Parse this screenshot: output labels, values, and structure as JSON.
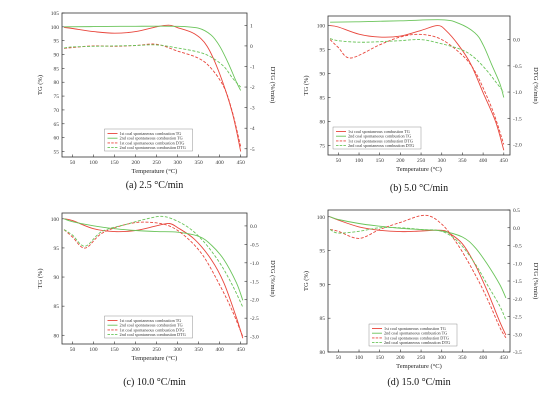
{
  "chart_data": [
    {
      "type": "line",
      "caption": "(a) 2.5 °C/min",
      "xlabel": "Temperature (°C)",
      "ylabel": "TG (%)",
      "y2label": "DTG (%/min)",
      "xlim": [
        25,
        465
      ],
      "ylim": [
        53,
        105
      ],
      "y2lim": [
        -5.4,
        1.6
      ],
      "xticks": [
        "50",
        "100",
        "150",
        "200",
        "250",
        "300",
        "350",
        "400",
        "450"
      ],
      "yticks": [
        "55",
        "60",
        "65",
        "70",
        "75",
        "80",
        "85",
        "90",
        "95",
        "100",
        "105"
      ],
      "y2ticks": [
        "-5",
        "-4",
        "-3",
        "-2",
        "-1",
        "0",
        "1"
      ],
      "legend_position": "lower-center",
      "series": [
        {
          "name": "1st coal spontaneous combustion TG",
          "axis": "left",
          "color": "#e8463c",
          "dash": "solid",
          "x": [
            30,
            50,
            100,
            150,
            200,
            250,
            280,
            300,
            340,
            370,
            400,
            430,
            450
          ],
          "y": [
            99.8,
            99.4,
            98.3,
            97.7,
            98.3,
            100.0,
            100.6,
            99.7,
            97.5,
            93.0,
            83.0,
            69.0,
            55.0
          ]
        },
        {
          "name": "2nd coal spontaneous combustion TG",
          "axis": "left",
          "color": "#6ac45a",
          "dash": "solid",
          "x": [
            30,
            100,
            200,
            300,
            350,
            380,
            400,
            420,
            440,
            450
          ],
          "y": [
            100.0,
            100.1,
            100.2,
            100.2,
            99.5,
            97.0,
            93.0,
            87.0,
            80.0,
            77.0
          ]
        },
        {
          "name": "1st coal spontaneous combustion DTG",
          "axis": "right",
          "color": "#e8463c",
          "dash": "dash",
          "x": [
            30,
            50,
            100,
            150,
            200,
            250,
            300,
            350,
            380,
            410,
            430,
            450
          ],
          "y": [
            -0.12,
            -0.08,
            0.0,
            -0.02,
            0.02,
            0.08,
            -0.25,
            -0.6,
            -1.1,
            -2.0,
            -3.2,
            -4.9
          ]
        },
        {
          "name": "2nd coal spontaneous combustion DTG",
          "axis": "right",
          "color": "#6ac45a",
          "dash": "dash",
          "x": [
            30,
            50,
            100,
            150,
            200,
            250,
            300,
            350,
            380,
            410,
            430,
            450
          ],
          "y": [
            -0.1,
            -0.05,
            -0.02,
            0.0,
            0.02,
            0.05,
            -0.1,
            -0.3,
            -0.55,
            -1.0,
            -1.55,
            -2.0
          ]
        }
      ]
    },
    {
      "type": "line",
      "caption": "(b) 5.0 °C/min",
      "xlabel": "Temperature (°C)",
      "ylabel": "TG (%)",
      "y2label": "DTG (%/min)",
      "xlim": [
        25,
        465
      ],
      "ylim": [
        73,
        102
      ],
      "y2lim": [
        -2.2,
        0.45
      ],
      "xticks": [
        "50",
        "100",
        "150",
        "200",
        "250",
        "300",
        "350",
        "400",
        "450"
      ],
      "yticks": [
        "75",
        "80",
        "85",
        "90",
        "95",
        "100"
      ],
      "y2ticks": [
        "-2.0",
        "-1.5",
        "-1.0",
        "-0.5",
        "0.0"
      ],
      "legend_position": "lower-left",
      "series": [
        {
          "name": "1st coal spontaneous combustion TG",
          "axis": "left",
          "color": "#e8463c",
          "dash": "solid",
          "x": [
            30,
            50,
            100,
            150,
            200,
            250,
            290,
            310,
            340,
            370,
            400,
            430,
            450
          ],
          "y": [
            100.0,
            99.7,
            98.2,
            97.6,
            97.8,
            99.0,
            100.0,
            99.0,
            96.0,
            92.0,
            86.0,
            80.0,
            74.0
          ]
        },
        {
          "name": "2nd coal spontaneous combustion TG",
          "axis": "left",
          "color": "#6ac45a",
          "dash": "solid",
          "x": [
            30,
            100,
            200,
            300,
            340,
            380,
            400,
            420,
            440,
            450
          ],
          "y": [
            100.7,
            100.8,
            101.0,
            101.2,
            100.5,
            98.5,
            96.0,
            92.0,
            88.0,
            85.0
          ]
        },
        {
          "name": "1st coal spontaneous combustion DTG",
          "axis": "right",
          "color": "#e8463c",
          "dash": "dash",
          "x": [
            30,
            50,
            80,
            150,
            200,
            250,
            300,
            350,
            380,
            410,
            430,
            450
          ],
          "y": [
            0.0,
            -0.15,
            -0.35,
            -0.1,
            0.05,
            0.1,
            0.0,
            -0.3,
            -0.6,
            -1.1,
            -1.5,
            -2.0
          ]
        },
        {
          "name": "2nd coal spontaneous combustion DTG",
          "axis": "right",
          "color": "#6ac45a",
          "dash": "dash",
          "x": [
            30,
            50,
            100,
            150,
            200,
            250,
            300,
            350,
            380,
            410,
            430,
            450
          ],
          "y": [
            0.02,
            -0.02,
            -0.05,
            -0.04,
            -0.02,
            0.0,
            -0.08,
            -0.2,
            -0.35,
            -0.6,
            -0.8,
            -1.0
          ]
        }
      ]
    },
    {
      "type": "line",
      "caption": "(c) 10.0 °C/min",
      "xlabel": "Temperature (°C)",
      "ylabel": "TG (%)",
      "y2label": "DTG (%/min)",
      "xlim": [
        25,
        465
      ],
      "ylim": [
        78.5,
        101
      ],
      "y2lim": [
        -3.2,
        0.35
      ],
      "xticks": [
        "50",
        "100",
        "150",
        "200",
        "250",
        "300",
        "350",
        "400",
        "450"
      ],
      "yticks": [
        "80",
        "85",
        "90",
        "95",
        "100"
      ],
      "y2ticks": [
        "-3.0",
        "-2.5",
        "-2.0",
        "-1.5",
        "-1.0",
        "-0.5",
        "0.0"
      ],
      "legend_position": "lower-center",
      "series": [
        {
          "name": "1st coal spontaneous combustion TG",
          "axis": "left",
          "color": "#e8463c",
          "dash": "solid",
          "x": [
            30,
            50,
            100,
            150,
            200,
            250,
            280,
            300,
            340,
            380,
            410,
            440,
            455
          ],
          "y": [
            100.0,
            99.7,
            98.3,
            97.8,
            98.0,
            98.8,
            99.2,
            98.5,
            96.5,
            93.0,
            89.0,
            83.0,
            79.5
          ]
        },
        {
          "name": "2nd coal spontaneous combustion TG",
          "axis": "left",
          "color": "#6ac45a",
          "dash": "solid",
          "x": [
            30,
            50,
            100,
            150,
            200,
            250,
            300,
            350,
            380,
            410,
            440,
            455
          ],
          "y": [
            100.0,
            99.5,
            98.8,
            98.3,
            98.0,
            97.8,
            97.7,
            97.0,
            95.5,
            93.0,
            89.0,
            86.0
          ]
        },
        {
          "name": "1st coal spontaneous combustion DTG",
          "axis": "right",
          "color": "#e8463c",
          "dash": "dash",
          "x": [
            30,
            50,
            80,
            120,
            180,
            230,
            280,
            320,
            360,
            400,
            430,
            455
          ],
          "y": [
            -0.1,
            -0.3,
            -0.6,
            -0.2,
            0.05,
            0.1,
            0.0,
            -0.3,
            -0.8,
            -1.6,
            -2.3,
            -3.0
          ]
        },
        {
          "name": "2nd coal spontaneous combustion DTG",
          "axis": "right",
          "color": "#6ac45a",
          "dash": "dash",
          "x": [
            30,
            50,
            80,
            120,
            180,
            230,
            270,
            320,
            360,
            400,
            430,
            455
          ],
          "y": [
            -0.1,
            -0.25,
            -0.55,
            -0.15,
            0.05,
            0.2,
            0.25,
            0.0,
            -0.4,
            -1.0,
            -1.6,
            -2.2
          ]
        }
      ]
    },
    {
      "type": "line",
      "caption": "(d) 15.0 °C/min",
      "xlabel": "Temperature (°C)",
      "ylabel": "TG (%)",
      "y2label": "DTG (%/min)",
      "xlim": [
        25,
        465
      ],
      "ylim": [
        80,
        101
      ],
      "y2lim": [
        -3.5,
        0.5
      ],
      "xticks": [
        "50",
        "100",
        "150",
        "200",
        "250",
        "300",
        "350",
        "400",
        "450"
      ],
      "yticks": [
        "80",
        "85",
        "90",
        "95",
        "100"
      ],
      "y2ticks": [
        "-3.5",
        "-3.0",
        "-2.5",
        "-2.0",
        "-1.5",
        "-1.0",
        "-0.5",
        "0.0",
        "0.5"
      ],
      "legend_position": "lower-center",
      "series": [
        {
          "name": "1st coal spontaneous combustion TG",
          "axis": "left",
          "color": "#e8463c",
          "dash": "solid",
          "x": [
            30,
            50,
            100,
            150,
            200,
            250,
            300,
            320,
            350,
            380,
            410,
            440,
            455
          ],
          "y": [
            100.0,
            99.5,
            98.5,
            98.0,
            97.8,
            97.9,
            98.0,
            97.5,
            96.0,
            93.0,
            89.0,
            84.5,
            82.5
          ]
        },
        {
          "name": "2nd coal spontaneous combustion TG",
          "axis": "left",
          "color": "#6ac45a",
          "dash": "solid",
          "x": [
            30,
            50,
            100,
            150,
            200,
            250,
            300,
            350,
            380,
            410,
            440,
            455
          ],
          "y": [
            100.0,
            99.6,
            99.0,
            98.6,
            98.3,
            98.1,
            97.9,
            97.0,
            95.5,
            93.0,
            90.0,
            88.0
          ]
        },
        {
          "name": "1st coal spontaneous combustion DTG",
          "axis": "right",
          "color": "#e8463c",
          "dash": "dash",
          "x": [
            30,
            50,
            100,
            150,
            200,
            260,
            300,
            340,
            380,
            410,
            440,
            455
          ],
          "y": [
            -0.05,
            -0.1,
            -0.3,
            -0.05,
            0.15,
            0.35,
            0.1,
            -0.5,
            -1.3,
            -2.0,
            -2.8,
            -3.1
          ]
        },
        {
          "name": "2nd coal spontaneous combustion DTG",
          "axis": "right",
          "color": "#6ac45a",
          "dash": "dash",
          "x": [
            30,
            50,
            100,
            150,
            200,
            250,
            300,
            340,
            380,
            410,
            440,
            455
          ],
          "y": [
            -0.05,
            -0.15,
            -0.1,
            0.0,
            0.0,
            -0.05,
            -0.1,
            -0.4,
            -1.0,
            -1.6,
            -2.2,
            -2.6
          ]
        }
      ]
    }
  ]
}
